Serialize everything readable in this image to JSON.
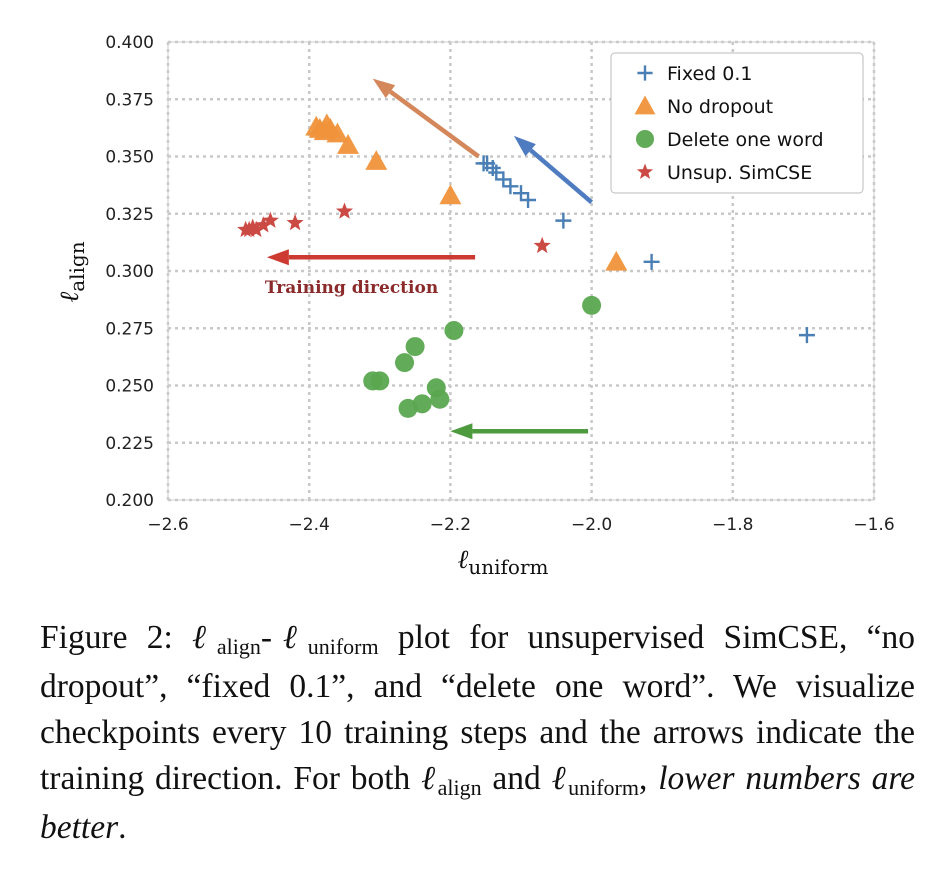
{
  "chart_data": {
    "type": "scatter",
    "xlabel": "ℓ",
    "xlabel_sub": "uniform",
    "ylabel": "ℓ",
    "ylabel_sub": "align",
    "xlim": [
      -2.6,
      -1.6
    ],
    "ylim": [
      0.2,
      0.4
    ],
    "x_ticks": [
      -2.6,
      -2.4,
      -2.2,
      -2.0,
      -1.8,
      -1.6
    ],
    "x_tick_labels": [
      "−2.6",
      "−2.4",
      "−2.2",
      "−2.0",
      "−1.8",
      "−1.6"
    ],
    "y_ticks": [
      0.2,
      0.225,
      0.25,
      0.275,
      0.3,
      0.325,
      0.35,
      0.375,
      0.4
    ],
    "y_tick_labels": [
      "0.200",
      "0.225",
      "0.250",
      "0.275",
      "0.300",
      "0.325",
      "0.350",
      "0.375",
      "0.400"
    ],
    "grid": true,
    "legend_position": "top-right",
    "series": [
      {
        "name": "Fixed 0.1",
        "marker": "plus",
        "color": "#4a7fb5",
        "points": [
          [
            -1.695,
            0.272
          ],
          [
            -1.915,
            0.304
          ],
          [
            -2.04,
            0.322
          ],
          [
            -2.09,
            0.331
          ],
          [
            -2.1,
            0.334
          ],
          [
            -2.115,
            0.337
          ],
          [
            -2.125,
            0.34
          ],
          [
            -2.135,
            0.343
          ],
          [
            -2.14,
            0.345
          ],
          [
            -2.148,
            0.347
          ],
          [
            -2.153,
            0.347
          ]
        ]
      },
      {
        "name": "No dropout",
        "marker": "triangle",
        "color": "#f0923b",
        "points": [
          [
            -1.965,
            0.304
          ],
          [
            -2.2,
            0.333
          ],
          [
            -2.305,
            0.348
          ],
          [
            -2.345,
            0.355
          ],
          [
            -2.36,
            0.36
          ],
          [
            -2.37,
            0.362
          ],
          [
            -2.375,
            0.364
          ],
          [
            -2.378,
            0.361
          ],
          [
            -2.385,
            0.362
          ],
          [
            -2.39,
            0.363
          ]
        ]
      },
      {
        "name": "Delete one word",
        "marker": "circle",
        "color": "#5aa64f",
        "points": [
          [
            -2.0,
            0.285
          ],
          [
            -2.195,
            0.274
          ],
          [
            -2.25,
            0.267
          ],
          [
            -2.265,
            0.26
          ],
          [
            -2.3,
            0.252
          ],
          [
            -2.31,
            0.252
          ],
          [
            -2.22,
            0.249
          ],
          [
            -2.215,
            0.244
          ],
          [
            -2.24,
            0.242
          ],
          [
            -2.26,
            0.24
          ]
        ]
      },
      {
        "name": "Unsup. SimCSE",
        "marker": "star",
        "color": "#cc4a44",
        "points": [
          [
            -2.07,
            0.311
          ],
          [
            -2.35,
            0.326
          ],
          [
            -2.42,
            0.321
          ],
          [
            -2.455,
            0.322
          ],
          [
            -2.465,
            0.32
          ],
          [
            -2.475,
            0.318
          ],
          [
            -2.48,
            0.319
          ],
          [
            -2.485,
            0.318
          ],
          [
            -2.49,
            0.318
          ]
        ]
      }
    ],
    "arrows": [
      {
        "color": "#4f7cc0",
        "from": [
          -2.0,
          0.33
        ],
        "to": [
          -2.11,
          0.359
        ]
      },
      {
        "color": "#d4875b",
        "from": [
          -2.16,
          0.35
        ],
        "to": [
          -2.31,
          0.384
        ]
      },
      {
        "color": "#cc3a32",
        "from": [
          -2.165,
          0.306
        ],
        "to": [
          -2.46,
          0.306
        ]
      },
      {
        "color": "#4e9a3e",
        "from": [
          -2.005,
          0.23
        ],
        "to": [
          -2.2,
          0.23
        ]
      }
    ],
    "annotations": [
      {
        "text": "Training direction",
        "x": -2.34,
        "y": 0.293
      }
    ]
  },
  "caption": {
    "fig": "Figure 2: ",
    "l1": "ℓ",
    "s1": "align",
    "dash": "-",
    "l2": "ℓ",
    "s2": "uniform",
    "t1": " plot for unsupervised SimCSE, “no dropout”, “fixed 0.1”, and “delete one word”. We visualize checkpoints every 10 training steps and the arrows indicate the training direction. For both ",
    "l3": "ℓ",
    "s3": "align",
    "t2": " and ",
    "l4": "ℓ",
    "s4": "uniform",
    "t3": ", ",
    "em": "lower numbers are better",
    "t4": "."
  }
}
